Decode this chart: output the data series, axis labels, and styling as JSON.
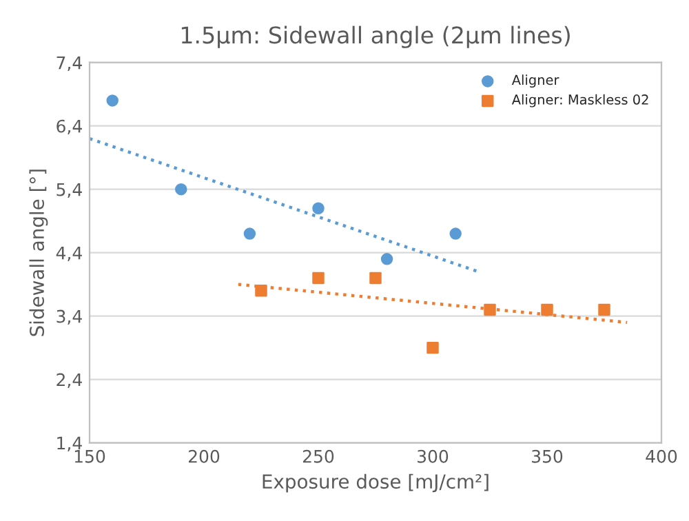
{
  "chart_data": {
    "type": "scatter",
    "title": "1.5µm: Sidewall angle (2µm lines)",
    "xlabel": "Exposure dose [mJ/cm²]",
    "ylabel": "Sidewall angle [°]",
    "series": [
      {
        "name": "Aligner",
        "color": "#5b9bd5",
        "marker": "circle",
        "x": [
          160,
          190,
          220,
          250,
          280,
          310
        ],
        "values": [
          6.8,
          5.4,
          4.7,
          5.1,
          4.3,
          4.7
        ]
      },
      {
        "name": "Aligner: Maskless 02",
        "color": "#ed7d31",
        "marker": "square",
        "x": [
          225,
          250,
          275,
          300,
          325,
          350,
          375
        ],
        "values": [
          3.8,
          4.0,
          4.0,
          2.9,
          3.5,
          3.5,
          3.5
        ]
      },
      {
        "type": "line",
        "color": "#5b9bd5",
        "line_style": "dotted",
        "marker": "none",
        "x": [
          150,
          320
        ],
        "values": [
          6.2,
          4.1
        ]
      },
      {
        "type": "line",
        "color": "#ed7d31",
        "line_style": "dotted",
        "marker": "none",
        "x": [
          215,
          385
        ],
        "values": [
          3.9,
          3.3
        ]
      }
    ],
    "xlim": [
      150,
      400
    ],
    "xticks": [
      150,
      200,
      250,
      300,
      350,
      400
    ],
    "ylim": [
      1.4,
      7.4
    ],
    "yticks": [
      {
        "value": 1.4,
        "label": "1,4"
      },
      {
        "value": 2.4,
        "label": "2,4"
      },
      {
        "value": 3.4,
        "label": "3,4"
      },
      {
        "value": 4.4,
        "label": "4,4"
      },
      {
        "value": 5.4,
        "label": "5,4"
      },
      {
        "value": 6.4,
        "label": "6,4"
      },
      {
        "value": 7.4,
        "label": "7,4"
      }
    ],
    "grid": "y",
    "legend": "top right"
  }
}
